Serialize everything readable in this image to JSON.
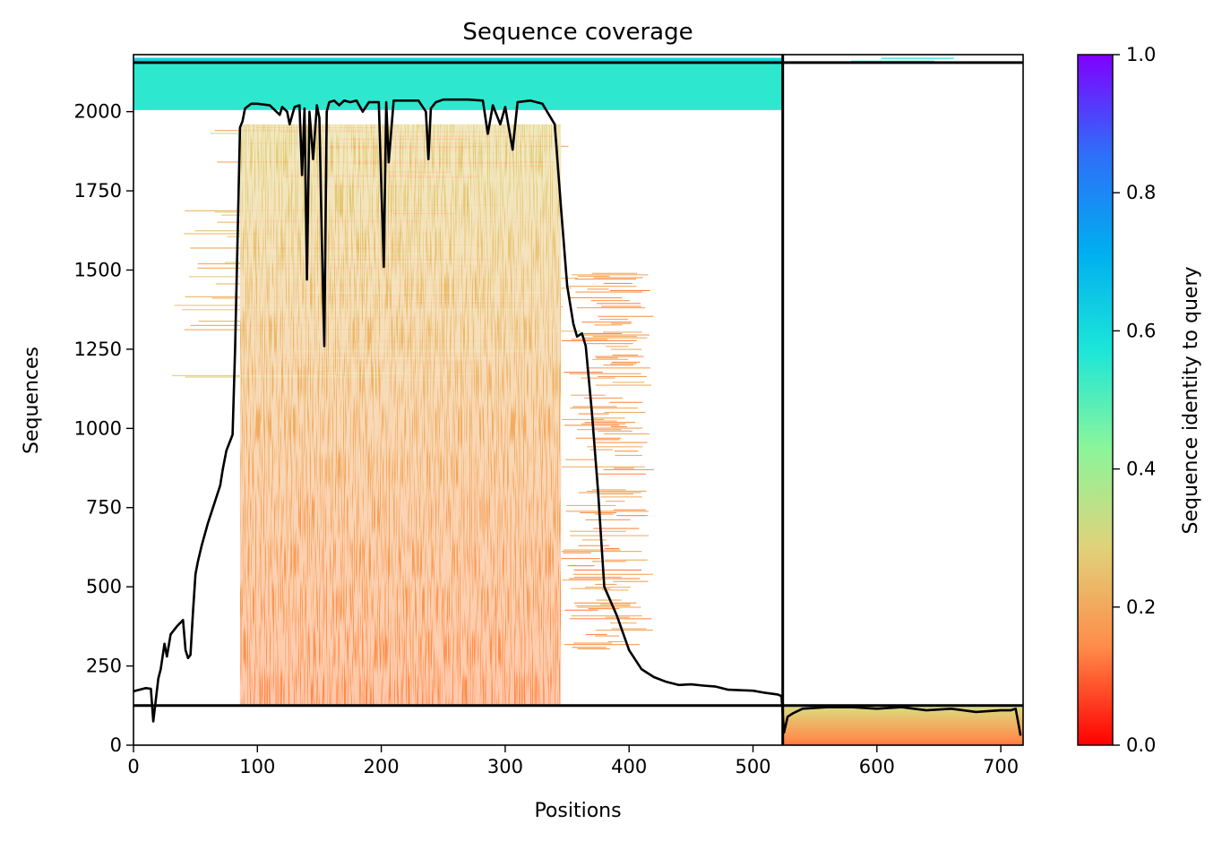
{
  "chart_data": {
    "type": "heatmap",
    "title": "Sequence coverage",
    "xlabel": "Positions",
    "ylabel": "Sequences",
    "xlim": [
      0,
      718
    ],
    "ylim": [
      0,
      2180
    ],
    "xticks": [
      0,
      100,
      200,
      300,
      400,
      500,
      600,
      700
    ],
    "yticks": [
      0,
      250,
      500,
      750,
      1000,
      1250,
      1500,
      1750,
      2000
    ],
    "colorbar": {
      "label": "Sequence identity to query",
      "range": [
        0,
        1
      ],
      "ticks": [
        0.0,
        0.2,
        0.4,
        0.6,
        0.8,
        1.0
      ],
      "colormap": "rainbow_r",
      "stops": [
        "#ff0000",
        "#ff8c4a",
        "#e0d27a",
        "#8cf59a",
        "#1ce6d8",
        "#00aef0",
        "#2f6ef8",
        "#8000ff"
      ]
    },
    "segment_boundaries": {
      "x": 524,
      "y": 125
    },
    "regions": [
      {
        "x0": 0,
        "x1": 524,
        "y0": 2150,
        "y1": 2170,
        "identity": 0.62
      },
      {
        "x0": 0,
        "x1": 524,
        "y0": 2005,
        "y1": 2150,
        "identity": 0.55
      },
      {
        "x0": 86,
        "x1": 345,
        "y0": 125,
        "y1": 1960,
        "identity_top": 0.28,
        "identity_bottom": 0.14
      },
      {
        "x0": 25,
        "x1": 365,
        "y0": 1150,
        "y1": 1960,
        "identity": 0.24,
        "sparse": true
      },
      {
        "x0": 345,
        "x1": 420,
        "y0": 300,
        "y1": 1500,
        "identity": 0.18,
        "sparse": true
      },
      {
        "x0": 524,
        "x1": 718,
        "y0": 0,
        "y1": 120,
        "identity_top": 0.3,
        "identity_bottom": 0.12
      },
      {
        "x0": 524,
        "x1": 718,
        "y0": 2155,
        "y1": 2170,
        "identity": 0.6,
        "sparse": true
      }
    ],
    "coverage_line": {
      "x": [
        0,
        10,
        14,
        16,
        20,
        22,
        25,
        27,
        30,
        35,
        40,
        42,
        44,
        46,
        48,
        50,
        52,
        55,
        60,
        65,
        70,
        72,
        75,
        80,
        82,
        84,
        86,
        88,
        90,
        95,
        100,
        110,
        118,
        120,
        124,
        126,
        130,
        134,
        136,
        138,
        140,
        142,
        145,
        148,
        150,
        152,
        154,
        156,
        158,
        162,
        166,
        170,
        175,
        180,
        185,
        190,
        198,
        202,
        204,
        206,
        210,
        220,
        230,
        236,
        238,
        240,
        244,
        250,
        270,
        282,
        286,
        290,
        296,
        300,
        306,
        310,
        320,
        330,
        340,
        345,
        350,
        355,
        358,
        362,
        365,
        370,
        375,
        380,
        390,
        400,
        410,
        420,
        430,
        440,
        450,
        460,
        470,
        480,
        500,
        510,
        520,
        523,
        525,
        528,
        532,
        540,
        560,
        580,
        600,
        620,
        640,
        660,
        680,
        700,
        708,
        712,
        716
      ],
      "y": [
        170,
        180,
        178,
        75,
        210,
        240,
        320,
        280,
        350,
        375,
        395,
        300,
        275,
        285,
        420,
        540,
        580,
        630,
        700,
        760,
        820,
        870,
        930,
        980,
        1250,
        1600,
        1950,
        1970,
        2010,
        2025,
        2025,
        2020,
        1990,
        2015,
        2000,
        1960,
        2015,
        2020,
        1800,
        2010,
        1470,
        2000,
        1850,
        2020,
        1980,
        1600,
        1260,
        2000,
        2030,
        2035,
        2020,
        2035,
        2030,
        2035,
        2000,
        2030,
        2030,
        1510,
        2030,
        1840,
        2035,
        2035,
        2035,
        2000,
        1850,
        2010,
        2030,
        2038,
        2038,
        2035,
        1930,
        2020,
        1960,
        2015,
        1880,
        2030,
        2035,
        2025,
        1960,
        1700,
        1450,
        1330,
        1290,
        1300,
        1260,
        1050,
        800,
        500,
        410,
        300,
        240,
        215,
        200,
        190,
        192,
        188,
        185,
        175,
        172,
        165,
        160,
        155,
        40,
        90,
        100,
        115,
        120,
        120,
        115,
        120,
        110,
        115,
        105,
        110,
        110,
        115,
        30
      ]
    }
  }
}
